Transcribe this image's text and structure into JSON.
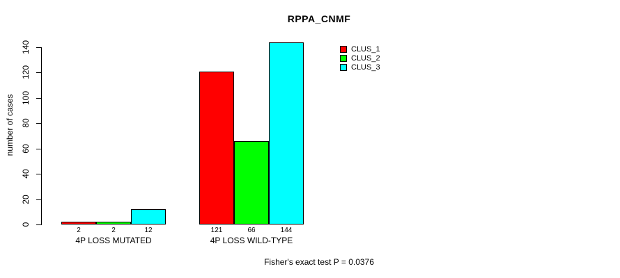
{
  "chart_data": {
    "type": "bar",
    "title": "RPPA_CNMF",
    "ylabel": "number of cases",
    "xlabel": "",
    "ylim": [
      0,
      140
    ],
    "yticks": [
      0,
      20,
      40,
      60,
      80,
      100,
      120,
      140
    ],
    "grid": false,
    "background": "#ffffff",
    "categories": [
      "4P LOSS MUTATED",
      "4P LOSS WILD-TYPE"
    ],
    "series": [
      {
        "name": "CLUS_1",
        "color": "#ff0000",
        "values": [
          2,
          121
        ]
      },
      {
        "name": "CLUS_2",
        "color": "#00ff00",
        "values": [
          2,
          66
        ]
      },
      {
        "name": "CLUS_3",
        "color": "#00ffff",
        "values": [
          12,
          144
        ]
      }
    ],
    "bar_value_labels": [
      [
        "2",
        "2",
        "12"
      ],
      [
        "121",
        "66",
        "144"
      ]
    ],
    "legend": {
      "position": "top-right",
      "entries": [
        {
          "label": "CLUS_1",
          "color": "#ff0000"
        },
        {
          "label": "CLUS_2",
          "color": "#00ff00"
        },
        {
          "label": "CLUS_3",
          "color": "#00ffff"
        }
      ]
    },
    "annotation": "Fisher's exact test P = 0.0376"
  }
}
